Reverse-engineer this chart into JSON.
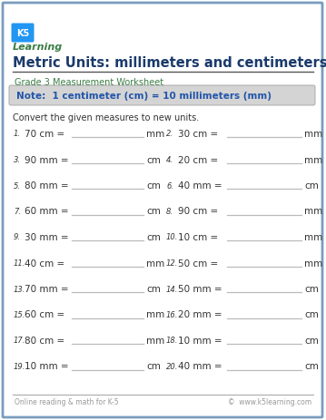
{
  "title": "Metric Units: millimeters and centimeters",
  "subtitle": "Grade 3 Measurement Worksheet",
  "note": "Note:  1 centimeter (cm) = 10 millimeters (mm)",
  "instruction": "Convert the given measures to new units.",
  "problems_left": [
    {
      "num": "1.",
      "text": "70 cm =",
      "unit": "mm"
    },
    {
      "num": "3.",
      "text": "90 mm =",
      "unit": "cm"
    },
    {
      "num": "5.",
      "text": "80 mm =",
      "unit": "cm"
    },
    {
      "num": "7.",
      "text": "60 mm =",
      "unit": "cm"
    },
    {
      "num": "9.",
      "text": "30 mm =",
      "unit": "cm"
    },
    {
      "num": "11.",
      "text": "40 cm =",
      "unit": "mm"
    },
    {
      "num": "13.",
      "text": "70 mm =",
      "unit": "cm"
    },
    {
      "num": "15.",
      "text": "60 cm =",
      "unit": "mm"
    },
    {
      "num": "17.",
      "text": "80 cm =",
      "unit": "mm"
    },
    {
      "num": "19.",
      "text": "10 mm =",
      "unit": "cm"
    }
  ],
  "problems_right": [
    {
      "num": "2.",
      "text": "30 cm =",
      "unit": "mm"
    },
    {
      "num": "4.",
      "text": "20 cm =",
      "unit": "mm"
    },
    {
      "num": "6.",
      "text": "40 mm =",
      "unit": "cm"
    },
    {
      "num": "8.",
      "text": "90 cm =",
      "unit": "mm"
    },
    {
      "num": "10.",
      "text": "10 cm =",
      "unit": "mm"
    },
    {
      "num": "12.",
      "text": "50 cm =",
      "unit": "mm"
    },
    {
      "num": "14.",
      "text": "50 mm =",
      "unit": "cm"
    },
    {
      "num": "16.",
      "text": "20 mm =",
      "unit": "cm"
    },
    {
      "num": "18.",
      "text": "10 mm =",
      "unit": "cm"
    },
    {
      "num": "20.",
      "text": "40 mm =",
      "unit": "cm"
    }
  ],
  "footer_left": "Online reading & math for K-5",
  "footer_right": "©  www.k5learning.com",
  "bg_color": "#ffffff",
  "border_color": "#7a9cbf",
  "title_color": "#1a3a6b",
  "subtitle_color": "#3a7d44",
  "note_bg": "#d4d4d4",
  "note_text_color": "#2255aa",
  "body_color": "#333333",
  "footer_color": "#999999",
  "line_color": "#bbbbbb",
  "logo_blue": "#2196F3",
  "logo_green": "#3a7d44"
}
